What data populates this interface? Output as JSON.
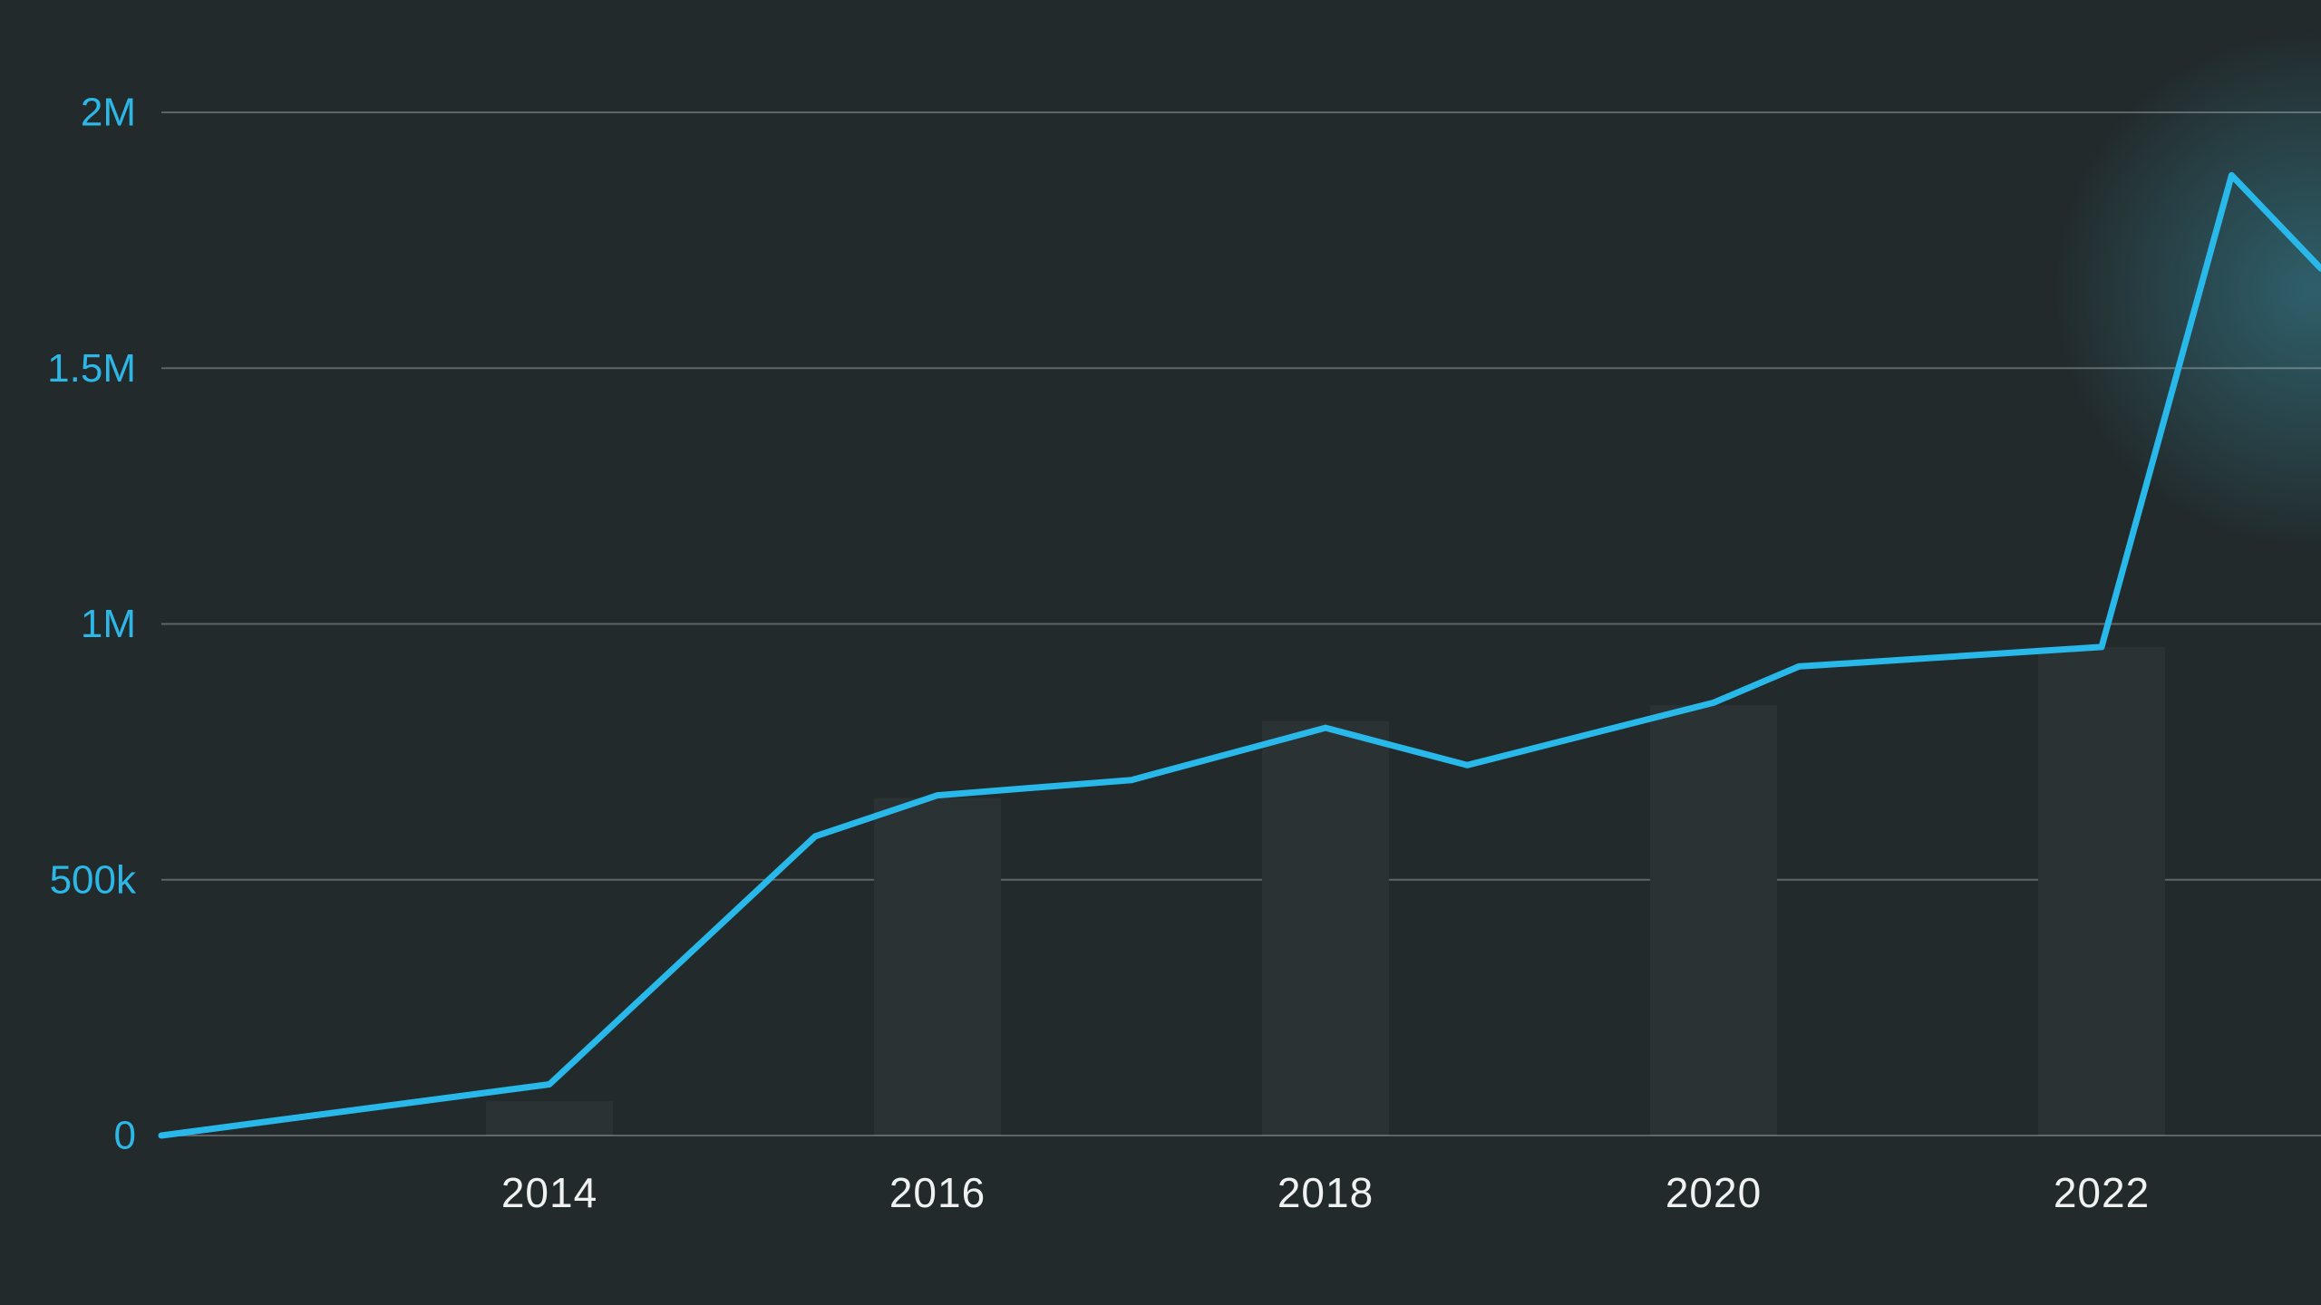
{
  "chart_data": {
    "type": "line",
    "title": "",
    "xlabel": "",
    "ylabel": "",
    "grid": true,
    "legend": "none",
    "xlim_years": [
      2012,
      2023.13
    ],
    "ylim": [
      0,
      2000000
    ],
    "yticks": [
      {
        "label": "0",
        "value": 0
      },
      {
        "label": "500k",
        "value": 500000
      },
      {
        "label": "1M",
        "value": 1000000
      },
      {
        "label": "1.5M",
        "value": 1500000
      },
      {
        "label": "2M",
        "value": 2000000
      }
    ],
    "xticks": [
      {
        "label": "2014",
        "value": 2014
      },
      {
        "label": "2016",
        "value": 2016
      },
      {
        "label": "2018",
        "value": 2018
      },
      {
        "label": "2020",
        "value": 2020
      },
      {
        "label": "2022",
        "value": 2022
      }
    ],
    "series": [
      {
        "name": "main-line",
        "type": "line",
        "points": [
          {
            "x": 2012.0,
            "y": 0
          },
          {
            "x": 2014.0,
            "y": 100000
          },
          {
            "x": 2015.37,
            "y": 585000
          },
          {
            "x": 2016.0,
            "y": 665000
          },
          {
            "x": 2017.0,
            "y": 695000
          },
          {
            "x": 2018.0,
            "y": 797000
          },
          {
            "x": 2018.73,
            "y": 724000
          },
          {
            "x": 2020.0,
            "y": 846000
          },
          {
            "x": 2020.44,
            "y": 917000
          },
          {
            "x": 2022.0,
            "y": 955000
          },
          {
            "x": 2022.67,
            "y": 1877000
          },
          {
            "x": 2023.13,
            "y": 1695000
          }
        ]
      },
      {
        "name": "background-bars",
        "type": "bar",
        "categories": [
          2014,
          2016,
          2018,
          2020,
          2022
        ],
        "values": [
          67000,
          660000,
          810000,
          841000,
          955000
        ]
      }
    ],
    "colors": {
      "background": "#222a2b",
      "line": "#29b8ea",
      "bar": "#2b3233",
      "gridline": "rgba(255,255,255,0.28)",
      "y_label": "#2db7e6",
      "x_label": "#f0f2f2",
      "glow": "#49cbeb"
    }
  }
}
